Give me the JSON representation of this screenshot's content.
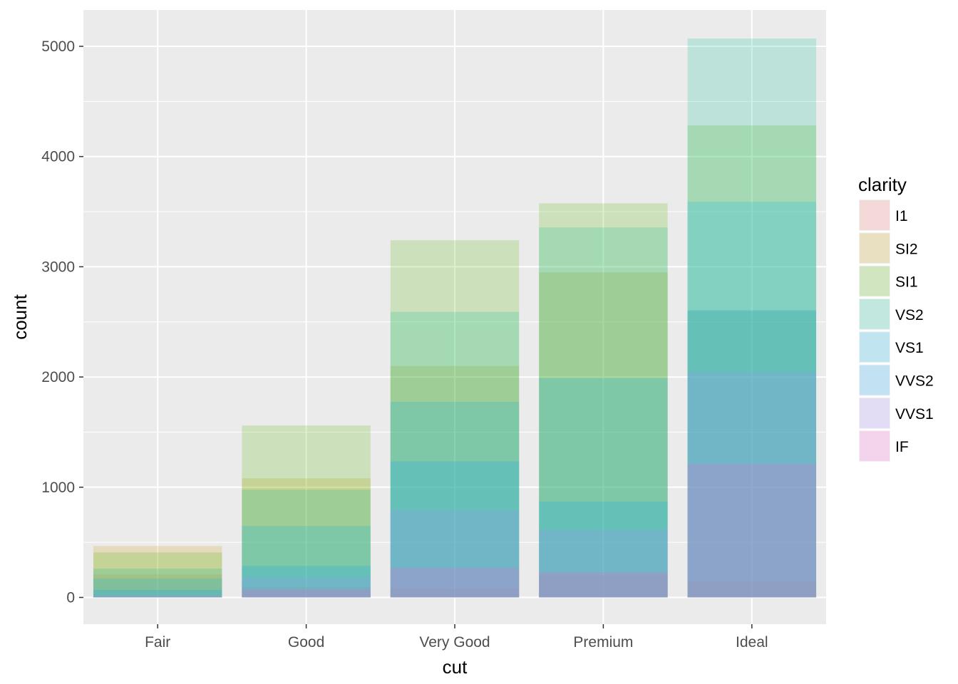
{
  "chart_data": {
    "type": "bar",
    "stacked": false,
    "position": "identity",
    "opacity": 0.2,
    "xlabel": "cut",
    "ylabel": "count",
    "categories": [
      "Fair",
      "Good",
      "Very Good",
      "Premium",
      "Ideal"
    ],
    "ylim": [
      -250,
      5330
    ],
    "yticks": [
      0,
      1000,
      2000,
      3000,
      4000,
      5000
    ],
    "grid": true,
    "legend": {
      "title": "clarity",
      "position": "right"
    },
    "series": [
      {
        "name": "I1",
        "color": "#F8766D",
        "values": [
          210,
          96,
          84,
          205,
          146
        ]
      },
      {
        "name": "SI2",
        "color": "#C49A00",
        "values": [
          466,
          1081,
          2100,
          2949,
          2598
        ]
      },
      {
        "name": "SI1",
        "color": "#53B400",
        "values": [
          408,
          1560,
          3240,
          3575,
          4282
        ]
      },
      {
        "name": "VS2",
        "color": "#00C094",
        "values": [
          261,
          978,
          2591,
          3357,
          5071
        ]
      },
      {
        "name": "VS1",
        "color": "#00B6EB",
        "values": [
          170,
          648,
          1775,
          1989,
          3589
        ]
      },
      {
        "name": "VVS2",
        "color": "#06A4FF",
        "values": [
          69,
          286,
          1235,
          870,
          2606
        ]
      },
      {
        "name": "VVS1",
        "color": "#A58AFF",
        "values": [
          17,
          186,
          789,
          616,
          2047
        ]
      },
      {
        "name": "IF",
        "color": "#FB61D7",
        "values": [
          9,
          71,
          268,
          230,
          1212
        ]
      }
    ]
  }
}
